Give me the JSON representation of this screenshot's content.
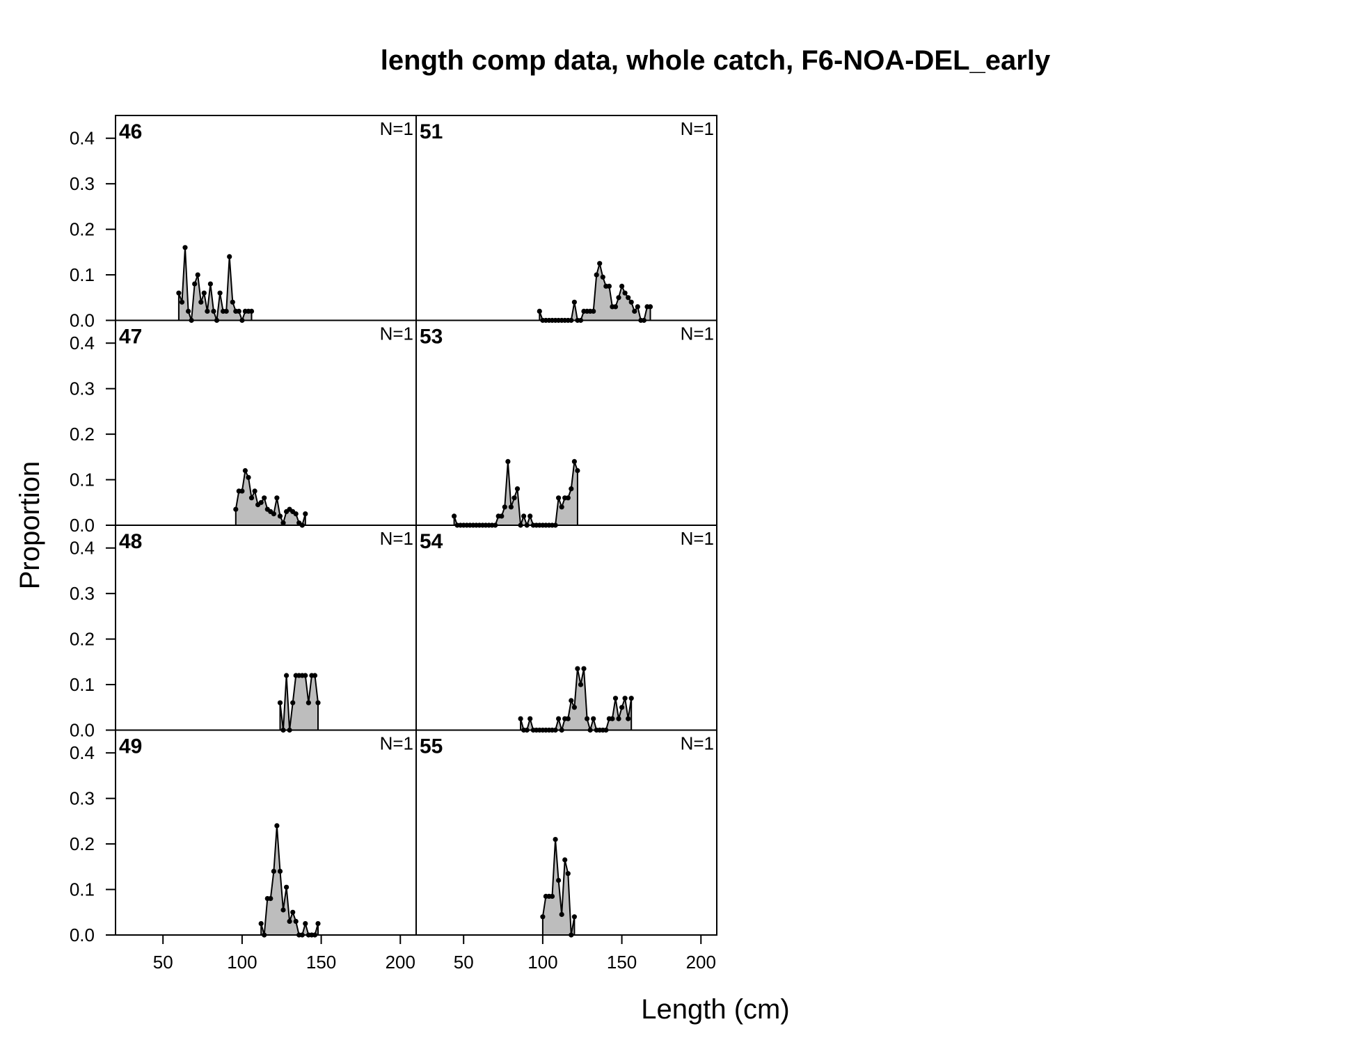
{
  "title": "length comp data, whole catch, F6-NOA-DEL_early",
  "xlabel": "Length (cm)",
  "ylabel": "Proportion",
  "xticks": [
    "50",
    "100",
    "150",
    "200"
  ],
  "yticks": [
    "0.0",
    "0.1",
    "0.2",
    "0.3",
    "0.4"
  ],
  "colors": {
    "fill": "#bdbdbd",
    "line": "#000000",
    "points": "#000000"
  },
  "chart_data": {
    "type": "area",
    "xlim": [
      20,
      210
    ],
    "ylim": [
      0,
      0.45
    ],
    "layout": "4 rows x 2 columns",
    "panels": [
      {
        "label": "46",
        "n_label": "N=1",
        "row": 0,
        "col": 0,
        "x": [
          60,
          62,
          64,
          66,
          68,
          70,
          72,
          74,
          76,
          78,
          80,
          82,
          84,
          86,
          88,
          90,
          92,
          94,
          96,
          98,
          100,
          102,
          104,
          106
        ],
        "y": [
          0.06,
          0.04,
          0.16,
          0.02,
          0.0,
          0.08,
          0.1,
          0.04,
          0.06,
          0.02,
          0.08,
          0.02,
          0.0,
          0.06,
          0.02,
          0.02,
          0.14,
          0.04,
          0.02,
          0.02,
          0.0,
          0.02,
          0.02,
          0.02
        ]
      },
      {
        "label": "51",
        "n_label": "N=1",
        "row": 0,
        "col": 1,
        "x": [
          98,
          100,
          102,
          104,
          106,
          108,
          110,
          112,
          114,
          116,
          118,
          120,
          122,
          124,
          126,
          128,
          130,
          132,
          134,
          136,
          138,
          140,
          142,
          144,
          146,
          148,
          150,
          152,
          154,
          156,
          158,
          160,
          162,
          164,
          166,
          168
        ],
        "y": [
          0.02,
          0.0,
          0.0,
          0.0,
          0.0,
          0.0,
          0.0,
          0.0,
          0.0,
          0.0,
          0.0,
          0.04,
          0.0,
          0.0,
          0.02,
          0.02,
          0.02,
          0.02,
          0.1,
          0.125,
          0.095,
          0.075,
          0.075,
          0.03,
          0.03,
          0.05,
          0.075,
          0.06,
          0.05,
          0.04,
          0.02,
          0.03,
          0.0,
          0.0,
          0.03,
          0.03
        ]
      },
      {
        "label": "47",
        "n_label": "N=1",
        "row": 1,
        "col": 0,
        "x": [
          96,
          98,
          100,
          102,
          104,
          106,
          108,
          110,
          112,
          114,
          116,
          118,
          120,
          122,
          124,
          126,
          128,
          130,
          132,
          134,
          136,
          138,
          140
        ],
        "y": [
          0.035,
          0.075,
          0.075,
          0.12,
          0.105,
          0.06,
          0.075,
          0.045,
          0.05,
          0.06,
          0.035,
          0.03,
          0.025,
          0.06,
          0.02,
          0.005,
          0.03,
          0.035,
          0.03,
          0.025,
          0.005,
          0.0,
          0.025
        ]
      },
      {
        "label": "53",
        "n_label": "N=1",
        "row": 1,
        "col": 1,
        "x": [
          44,
          46,
          48,
          50,
          52,
          54,
          56,
          58,
          60,
          62,
          64,
          66,
          68,
          70,
          72,
          74,
          76,
          78,
          80,
          82,
          84,
          86,
          88,
          90,
          92,
          94,
          96,
          98,
          100,
          102,
          104,
          106,
          108,
          110,
          112,
          114,
          116,
          118,
          120,
          122
        ],
        "y": [
          0.02,
          0.0,
          0.0,
          0.0,
          0.0,
          0.0,
          0.0,
          0.0,
          0.0,
          0.0,
          0.0,
          0.0,
          0.0,
          0.0,
          0.02,
          0.02,
          0.04,
          0.14,
          0.04,
          0.06,
          0.08,
          0.0,
          0.02,
          0.0,
          0.02,
          0.0,
          0.0,
          0.0,
          0.0,
          0.0,
          0.0,
          0.0,
          0.0,
          0.06,
          0.04,
          0.06,
          0.06,
          0.08,
          0.14,
          0.12
        ]
      },
      {
        "label": "48",
        "n_label": "N=1",
        "row": 2,
        "col": 0,
        "x": [
          124,
          126,
          128,
          130,
          132,
          134,
          136,
          138,
          140,
          142,
          144,
          146,
          148
        ],
        "y": [
          0.06,
          0.0,
          0.12,
          0.0,
          0.06,
          0.12,
          0.12,
          0.12,
          0.12,
          0.06,
          0.12,
          0.12,
          0.06
        ]
      },
      {
        "label": "54",
        "n_label": "N=1",
        "row": 2,
        "col": 1,
        "x": [
          86,
          88,
          90,
          92,
          94,
          96,
          98,
          100,
          102,
          104,
          106,
          108,
          110,
          112,
          114,
          116,
          118,
          120,
          122,
          124,
          126,
          128,
          130,
          132,
          134,
          136,
          138,
          140,
          142,
          144,
          146,
          148,
          150,
          152,
          154,
          156
        ],
        "y": [
          0.025,
          0.0,
          0.0,
          0.025,
          0.0,
          0.0,
          0.0,
          0.0,
          0.0,
          0.0,
          0.0,
          0.0,
          0.025,
          0.0,
          0.025,
          0.025,
          0.065,
          0.05,
          0.135,
          0.1,
          0.135,
          0.025,
          0.0,
          0.025,
          0.0,
          0.0,
          0.0,
          0.0,
          0.025,
          0.025,
          0.07,
          0.025,
          0.05,
          0.07,
          0.025,
          0.07
        ]
      },
      {
        "label": "49",
        "n_label": "N=1",
        "row": 3,
        "col": 0,
        "x": [
          112,
          114,
          116,
          118,
          120,
          122,
          124,
          126,
          128,
          130,
          132,
          134,
          136,
          138,
          140,
          142,
          144,
          146,
          148
        ],
        "y": [
          0.025,
          0.0,
          0.08,
          0.08,
          0.14,
          0.24,
          0.14,
          0.055,
          0.105,
          0.03,
          0.05,
          0.03,
          0.0,
          0.0,
          0.025,
          0.0,
          0.0,
          0.0,
          0.025
        ]
      },
      {
        "label": "55",
        "n_label": "N=1",
        "row": 3,
        "col": 1,
        "x": [
          100,
          102,
          104,
          106,
          108,
          110,
          112,
          114,
          116,
          118,
          120
        ],
        "y": [
          0.04,
          0.085,
          0.085,
          0.085,
          0.21,
          0.12,
          0.045,
          0.165,
          0.135,
          0.0,
          0.04
        ]
      }
    ]
  }
}
